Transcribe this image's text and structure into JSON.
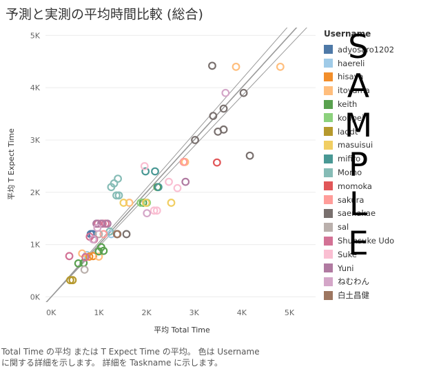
{
  "page": {
    "title": "予測と実測の平均時間比較 (総合)",
    "caption": [
      "Total Time の平均 または T Expect Time の平均。 色は Username",
      "に関する詳細を示します。 詳細を Taskname に示します。"
    ]
  },
  "watermark": [
    "S",
    "A",
    "M",
    "P",
    "L",
    "E"
  ],
  "chart_data": {
    "type": "scatter",
    "title": "予測と実測の平均時間比較 (総合)",
    "xlabel": "平均 Total Time",
    "ylabel": "平均 T Expect Time",
    "xlim": [
      -120,
      5550
    ],
    "ylim": [
      -100,
      5150
    ],
    "x_ticks": [
      0,
      1000,
      2000,
      3000,
      4000,
      5000
    ],
    "x_tick_labels": [
      "0K",
      "1K",
      "2K",
      "3K",
      "4K",
      "5K"
    ],
    "y_ticks": [
      0,
      1000,
      2000,
      3000,
      4000,
      5000
    ],
    "y_tick_labels": [
      "0K",
      "1K",
      "2K",
      "3K",
      "4K",
      "5K"
    ],
    "grid": "horizontal",
    "legend_placement": "right",
    "legend_title": "Username",
    "reference_lines": [
      {
        "slope": 1.0,
        "color": "#999999"
      },
      {
        "slope": 0.96,
        "color": "#999999"
      },
      {
        "slope": 1.04,
        "color": "#999999"
      }
    ],
    "series": [
      {
        "name": "adyosaro1202",
        "color": "#4e79a7",
        "points": [
          [
            830,
            1200
          ],
          [
            870,
            1200
          ]
        ]
      },
      {
        "name": "haereli",
        "color": "#a0cbe8",
        "points": [
          [
            750,
            800
          ],
          [
            1260,
            1200
          ]
        ]
      },
      {
        "name": "hisaya",
        "color": "#f28e2b",
        "points": [
          [
            800,
            770
          ],
          [
            880,
            780
          ]
        ]
      },
      {
        "name": "itoyama",
        "color": "#ffbe7d",
        "points": [
          [
            3880,
            4400
          ],
          [
            4810,
            4400
          ],
          [
            2810,
            2580
          ],
          [
            1000,
            770
          ],
          [
            650,
            830
          ],
          [
            1640,
            1800
          ]
        ]
      },
      {
        "name": "keith",
        "color": "#59a14f",
        "points": [
          [
            1000,
            870
          ],
          [
            1100,
            880
          ],
          [
            1050,
            950
          ],
          [
            570,
            640
          ],
          [
            1930,
            1800
          ],
          [
            2230,
            2100
          ],
          [
            680,
            650
          ]
        ]
      },
      {
        "name": "konpei",
        "color": "#8cd17d",
        "points": [
          [
            1880,
            1800
          ],
          [
            2010,
            1800
          ]
        ]
      },
      {
        "name": "laddt",
        "color": "#b6992d",
        "points": [
          [
            400,
            320
          ],
          [
            450,
            320
          ]
        ]
      },
      {
        "name": "masuisui",
        "color": "#f1ce63",
        "points": [
          [
            1520,
            1800
          ],
          [
            1990,
            1800
          ],
          [
            2520,
            1800
          ]
        ]
      },
      {
        "name": "mifiro",
        "color": "#499894",
        "points": [
          [
            1980,
            2400
          ],
          [
            2180,
            2400
          ],
          [
            2250,
            2100
          ]
        ]
      },
      {
        "name": "Momo",
        "color": "#86bcb6",
        "points": [
          [
            1260,
            2100
          ],
          [
            1320,
            2170
          ],
          [
            1400,
            2260
          ],
          [
            1370,
            1940
          ],
          [
            1420,
            1940
          ],
          [
            1230,
            1250
          ]
        ]
      },
      {
        "name": "momoka",
        "color": "#e15759",
        "points": [
          [
            3480,
            2570
          ]
        ]
      },
      {
        "name": "sakura",
        "color": "#ff9d9a",
        "points": [
          [
            2780,
            2580
          ],
          [
            1100,
            1200
          ]
        ]
      },
      {
        "name": "saenakae",
        "color": "#79706e",
        "points": [
          [
            3380,
            4420
          ],
          [
            3620,
            3600
          ],
          [
            3400,
            3460
          ],
          [
            3500,
            3160
          ],
          [
            3620,
            3200
          ],
          [
            4040,
            3900
          ],
          [
            4170,
            2700
          ],
          [
            3020,
            3000
          ],
          [
            1390,
            1200
          ],
          [
            1580,
            1200
          ]
        ]
      },
      {
        "name": "sal",
        "color": "#bab0ac",
        "points": [
          [
            700,
            520
          ],
          [
            1000,
            1200
          ]
        ]
      },
      {
        "name": "Shunsuke Udo",
        "color": "#d37295",
        "points": [
          [
            380,
            780
          ],
          [
            720,
            760
          ],
          [
            810,
            1150
          ],
          [
            900,
            1100
          ],
          [
            980,
            1400
          ],
          [
            1080,
            1400
          ],
          [
            1140,
            1400
          ]
        ]
      },
      {
        "name": "Suke",
        "color": "#fabfd2",
        "points": [
          [
            2470,
            2200
          ],
          [
            2650,
            2080
          ],
          [
            1960,
            2500
          ],
          [
            2160,
            1650
          ],
          [
            2220,
            1650
          ]
        ]
      },
      {
        "name": "Yuni",
        "color": "#b07aa1",
        "points": [
          [
            2820,
            2200
          ],
          [
            950,
            1400
          ],
          [
            1050,
            1400
          ],
          [
            1180,
            1400
          ]
        ]
      },
      {
        "name": "ねむわん",
        "color": "#d4a6c8",
        "points": [
          [
            3660,
            3900
          ],
          [
            2010,
            1600
          ],
          [
            880,
            1100
          ],
          [
            970,
            1320
          ]
        ]
      },
      {
        "name": "白土昌健",
        "color": "#9d7660",
        "points": [
          [
            1380,
            1200
          ]
        ]
      }
    ]
  }
}
